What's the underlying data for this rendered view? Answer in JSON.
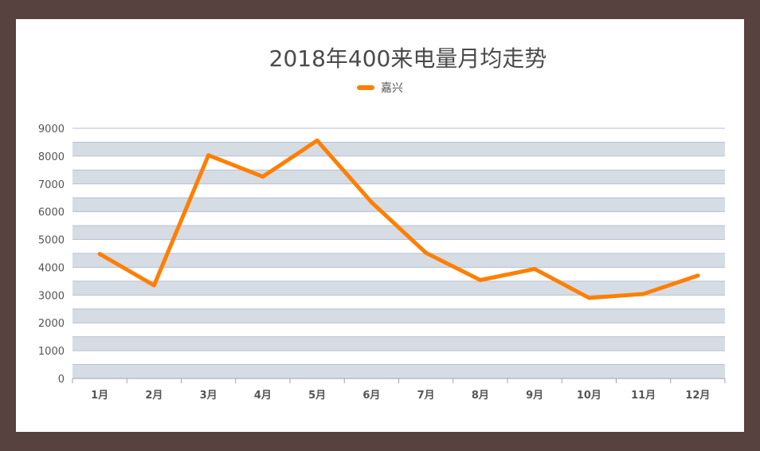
{
  "chart_data": {
    "type": "line",
    "title": "2018年400来电量月均走势",
    "categories": [
      "1月",
      "2月",
      "3月",
      "4月",
      "5月",
      "6月",
      "7月",
      "8月",
      "9月",
      "10月",
      "11月",
      "12月"
    ],
    "series": [
      {
        "name": "嘉兴",
        "values": [
          4480,
          3350,
          8030,
          7260,
          8560,
          6340,
          4520,
          3540,
          3940,
          2900,
          3040,
          3700
        ],
        "color": "#ff7f00"
      }
    ],
    "yticks": [
      0,
      1000,
      2000,
      3000,
      4000,
      5000,
      6000,
      7000,
      8000,
      9000
    ],
    "ylim": [
      0,
      9000
    ],
    "grid": true,
    "legend_position": "top-center"
  }
}
